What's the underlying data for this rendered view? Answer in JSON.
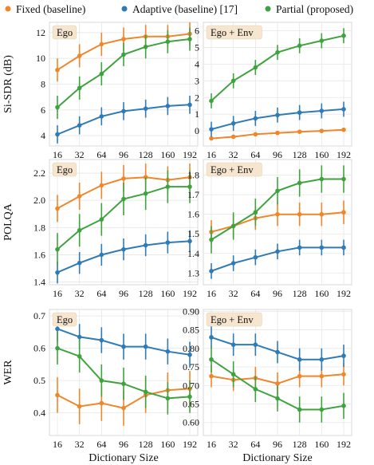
{
  "colors": {
    "Fixed (baseline)": "#f0862a",
    "Adaptive (baseline) [17]": "#2f7bb5",
    "Partial (proposed)": "#3ea33e"
  },
  "legend": [
    "Fixed (baseline)",
    "Adaptive (baseline) [17]",
    "Partial (proposed)"
  ],
  "xlabel": "Dictionary Size",
  "chart_data": [
    {
      "type": "line",
      "title": "Ego",
      "ylabel": "Si-SDR (dB)",
      "categories": [
        "16",
        "32",
        "64",
        "96",
        "128",
        "160",
        "192"
      ],
      "ylim": [
        3.2,
        12.8
      ],
      "yticks": [
        "4",
        "6",
        "8",
        "10",
        "12"
      ],
      "series": [
        {
          "name": "Fixed (baseline)",
          "values": [
            9.1,
            10.2,
            11.1,
            11.5,
            11.7,
            11.7,
            11.9
          ],
          "err": [
            0.9,
            0.9,
            0.9,
            0.9,
            0.9,
            0.9,
            0.9
          ]
        },
        {
          "name": "Adaptive (baseline) [17]",
          "values": [
            4.1,
            4.8,
            5.5,
            5.9,
            6.1,
            6.3,
            6.4
          ],
          "err": [
            0.7,
            0.7,
            0.7,
            0.7,
            0.7,
            0.7,
            0.7
          ]
        },
        {
          "name": "Partial (proposed)",
          "values": [
            6.2,
            7.7,
            8.8,
            10.3,
            10.9,
            11.3,
            11.5
          ],
          "err": [
            0.9,
            0.9,
            0.9,
            0.9,
            0.9,
            0.9,
            0.9
          ]
        }
      ]
    },
    {
      "type": "line",
      "title": "Ego + Env",
      "ylabel": "",
      "categories": [
        "16",
        "32",
        "64",
        "96",
        "128",
        "160",
        "192"
      ],
      "ylim": [
        -0.9,
        6.5
      ],
      "yticks": [
        "0",
        "1",
        "2",
        "3",
        "4",
        "5",
        "6"
      ],
      "series": [
        {
          "name": "Fixed (baseline)",
          "values": [
            -0.45,
            -0.35,
            -0.2,
            -0.12,
            -0.05,
            0.0,
            0.07
          ],
          "err": [
            0.08,
            0.08,
            0.06,
            0.06,
            0.05,
            0.05,
            0.05
          ]
        },
        {
          "name": "Adaptive (baseline) [17]",
          "values": [
            0.1,
            0.45,
            0.75,
            0.95,
            1.1,
            1.2,
            1.3
          ],
          "err": [
            0.45,
            0.45,
            0.45,
            0.45,
            0.45,
            0.45,
            0.45
          ]
        },
        {
          "name": "Partial (proposed)",
          "values": [
            1.8,
            3.0,
            3.8,
            4.7,
            5.1,
            5.4,
            5.7
          ],
          "err": [
            0.45,
            0.45,
            0.45,
            0.45,
            0.45,
            0.45,
            0.45
          ]
        }
      ]
    },
    {
      "type": "line",
      "title": "Ego",
      "ylabel": "POLQA",
      "categories": [
        "16",
        "32",
        "64",
        "96",
        "128",
        "160",
        "192"
      ],
      "ylim": [
        1.38,
        2.3
      ],
      "yticks": [
        "1.4",
        "1.6",
        "1.8",
        "2.0",
        "2.2"
      ],
      "series": [
        {
          "name": "Fixed (baseline)",
          "values": [
            1.94,
            2.03,
            2.11,
            2.16,
            2.17,
            2.15,
            2.17
          ],
          "err": [
            0.1,
            0.1,
            0.1,
            0.1,
            0.1,
            0.1,
            0.1
          ]
        },
        {
          "name": "Adaptive (baseline) [17]",
          "values": [
            1.47,
            1.54,
            1.6,
            1.64,
            1.67,
            1.69,
            1.7
          ],
          "err": [
            0.08,
            0.08,
            0.08,
            0.08,
            0.08,
            0.08,
            0.08
          ]
        },
        {
          "name": "Partial (proposed)",
          "values": [
            1.64,
            1.78,
            1.86,
            2.01,
            2.05,
            2.1,
            2.1
          ],
          "err": [
            0.12,
            0.12,
            0.12,
            0.12,
            0.12,
            0.12,
            0.12
          ]
        }
      ]
    },
    {
      "type": "line",
      "title": "Ego + Env",
      "ylabel": "",
      "categories": [
        "16",
        "32",
        "64",
        "96",
        "128",
        "160",
        "192"
      ],
      "ylim": [
        1.24,
        1.88
      ],
      "yticks": [
        "1.3",
        "1.4",
        "1.5",
        "1.6",
        "1.7",
        "1.8"
      ],
      "series": [
        {
          "name": "Fixed (baseline)",
          "values": [
            1.51,
            1.54,
            1.58,
            1.6,
            1.6,
            1.6,
            1.61
          ],
          "err": [
            0.06,
            0.06,
            0.06,
            0.06,
            0.06,
            0.06,
            0.06
          ]
        },
        {
          "name": "Adaptive (baseline) [17]",
          "values": [
            1.31,
            1.35,
            1.38,
            1.41,
            1.43,
            1.43,
            1.43
          ],
          "err": [
            0.04,
            0.04,
            0.04,
            0.04,
            0.04,
            0.04,
            0.04
          ]
        },
        {
          "name": "Partial (proposed)",
          "values": [
            1.47,
            1.54,
            1.61,
            1.72,
            1.76,
            1.78,
            1.78
          ],
          "err": [
            0.07,
            0.07,
            0.07,
            0.07,
            0.07,
            0.07,
            0.07
          ]
        }
      ]
    },
    {
      "type": "line",
      "title": "Ego",
      "ylabel": "WER",
      "categories": [
        "16",
        "32",
        "64",
        "96",
        "128",
        "160",
        "192"
      ],
      "ylim": [
        0.33,
        0.72
      ],
      "yticks": [
        "0.4",
        "0.5",
        "0.6",
        "0.7"
      ],
      "series": [
        {
          "name": "Fixed (baseline)",
          "values": [
            0.455,
            0.42,
            0.43,
            0.415,
            0.455,
            0.47,
            0.475
          ],
          "err": [
            0.055,
            0.055,
            0.055,
            0.055,
            0.055,
            0.055,
            0.055
          ]
        },
        {
          "name": "Adaptive (baseline) [17]",
          "values": [
            0.66,
            0.635,
            0.625,
            0.605,
            0.605,
            0.59,
            0.58
          ],
          "err": [
            0.04,
            0.04,
            0.04,
            0.04,
            0.04,
            0.04,
            0.04
          ]
        },
        {
          "name": "Partial (proposed)",
          "values": [
            0.6,
            0.575,
            0.5,
            0.49,
            0.465,
            0.445,
            0.45
          ],
          "err": [
            0.05,
            0.05,
            0.05,
            0.05,
            0.05,
            0.05,
            0.05
          ]
        }
      ]
    },
    {
      "type": "line",
      "title": "Ego + Env",
      "ylabel": "",
      "categories": [
        "16",
        "32",
        "64",
        "96",
        "128",
        "160",
        "192"
      ],
      "ylim": [
        0.565,
        0.905
      ],
      "yticks": [
        "0.60",
        "0.65",
        "0.70",
        "0.75",
        "0.80",
        "0.85",
        "0.90"
      ],
      "series": [
        {
          "name": "Fixed (baseline)",
          "values": [
            0.725,
            0.715,
            0.72,
            0.705,
            0.725,
            0.725,
            0.73
          ],
          "err": [
            0.03,
            0.03,
            0.03,
            0.03,
            0.03,
            0.03,
            0.03
          ]
        },
        {
          "name": "Adaptive (baseline) [17]",
          "values": [
            0.83,
            0.81,
            0.81,
            0.79,
            0.77,
            0.77,
            0.78
          ],
          "err": [
            0.03,
            0.03,
            0.03,
            0.03,
            0.03,
            0.03,
            0.03
          ]
        },
        {
          "name": "Partial (proposed)",
          "values": [
            0.77,
            0.73,
            0.69,
            0.665,
            0.635,
            0.635,
            0.645
          ],
          "err": [
            0.035,
            0.035,
            0.035,
            0.035,
            0.035,
            0.035,
            0.035
          ]
        }
      ]
    }
  ]
}
